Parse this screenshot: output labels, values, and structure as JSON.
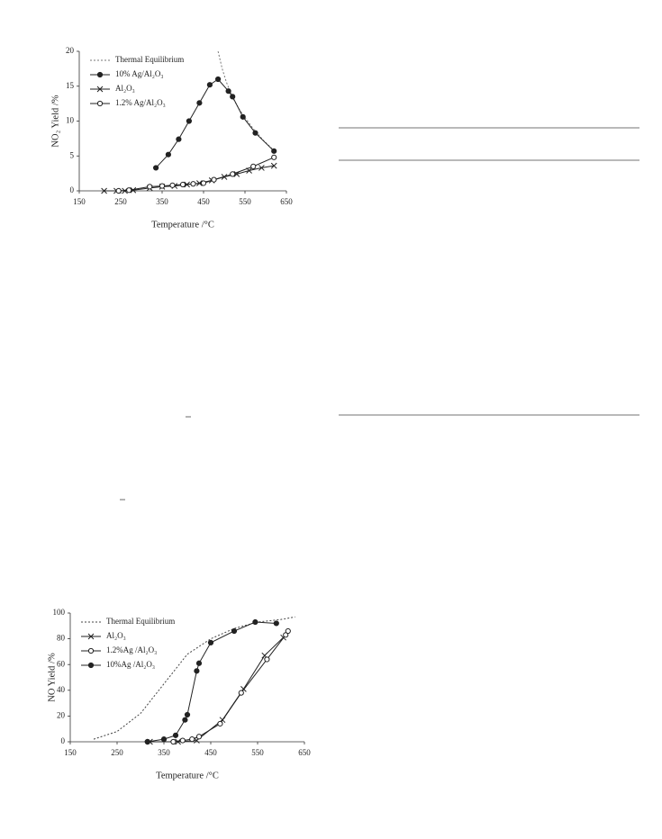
{
  "chart_data": [
    {
      "type": "line",
      "xlabel": "Temperature /°C",
      "ylabel": "NO₂ Yield /%",
      "xlim": [
        150,
        650
      ],
      "xticks": [
        150,
        250,
        350,
        450,
        550,
        650
      ],
      "ylim": [
        0,
        20
      ],
      "yticks": [
        0,
        5,
        10,
        15,
        20
      ],
      "legend": "upper-left",
      "series": [
        {
          "name": "Thermal Equilibrium",
          "color": "#777777",
          "marker": "none",
          "dash": "dotted",
          "x": [
            485,
            495,
            505,
            520,
            535,
            550,
            570,
            595,
            620
          ],
          "values": [
            20,
            17.5,
            15.6,
            13.4,
            11.8,
            10.5,
            8.9,
            7.2,
            5.8
          ]
        },
        {
          "name": "10% Ag/Al₂O₃",
          "color": "#222222",
          "marker": "filled-circle",
          "dash": "solid",
          "x": [
            335,
            365,
            390,
            415,
            440,
            465,
            485,
            510,
            520,
            545,
            575,
            620
          ],
          "values": [
            3.3,
            5.2,
            7.4,
            10,
            12.6,
            15.2,
            16,
            14.3,
            13.5,
            10.6,
            8.3,
            5.7
          ]
        },
        {
          "name": "Al₂O₃",
          "color": "#222222",
          "marker": "cross",
          "dash": "solid",
          "x": [
            210,
            240,
            260,
            280,
            320,
            350,
            380,
            410,
            440,
            470,
            500,
            530,
            560,
            590,
            620
          ],
          "values": [
            0,
            0,
            0,
            0.1,
            0.4,
            0.6,
            0.7,
            0.9,
            1.1,
            1.5,
            2,
            2.4,
            2.9,
            3.3,
            3.6
          ]
        },
        {
          "name": "1.2% Ag/Al₂O₃",
          "color": "#222222",
          "marker": "open-circle",
          "dash": "solid",
          "x": [
            245,
            270,
            320,
            350,
            375,
            400,
            425,
            450,
            475,
            520,
            570,
            620
          ],
          "values": [
            0,
            0.1,
            0.6,
            0.7,
            0.8,
            0.9,
            1,
            1.1,
            1.6,
            2.4,
            3.5,
            4.8
          ]
        }
      ]
    },
    {
      "type": "line",
      "xlabel": "Temperature /°C",
      "ylabel": "NO Yield /%",
      "xlim": [
        150,
        650
      ],
      "xticks": [
        150,
        250,
        350,
        450,
        550,
        650
      ],
      "ylim": [
        0,
        100
      ],
      "yticks": [
        0,
        20,
        40,
        60,
        80,
        100
      ],
      "legend": "upper-left",
      "series": [
        {
          "name": "Thermal Equilibrium",
          "color": "#444444",
          "marker": "none",
          "dash": "dotted",
          "x": [
            200,
            250,
            300,
            350,
            400,
            450,
            500,
            550,
            600,
            630
          ],
          "values": [
            2,
            8,
            22,
            45,
            68,
            80,
            88,
            93,
            95,
            97
          ]
        },
        {
          "name": "Al₂O₃",
          "color": "#222222",
          "marker": "cross",
          "dash": "solid",
          "x": [
            320,
            380,
            420,
            475,
            520,
            565,
            605
          ],
          "values": [
            0,
            0,
            1,
            17,
            41,
            67,
            81
          ]
        },
        {
          "name": "1.2%Ag /Al₂O₃",
          "color": "#222222",
          "marker": "open-circle",
          "dash": "solid",
          "x": [
            315,
            370,
            390,
            410,
            425,
            470,
            515,
            570,
            610,
            615
          ],
          "values": [
            0,
            0,
            1,
            2,
            4,
            14,
            38,
            64,
            83,
            86
          ]
        },
        {
          "name": "10%Ag /Al₂O₃",
          "color": "#222222",
          "marker": "filled-circle",
          "dash": "solid",
          "x": [
            315,
            350,
            375,
            395,
            400,
            420,
            425,
            450,
            500,
            545,
            590
          ],
          "values": [
            0,
            2,
            5,
            17,
            21,
            55,
            61,
            77,
            86,
            93,
            92
          ]
        }
      ]
    }
  ]
}
